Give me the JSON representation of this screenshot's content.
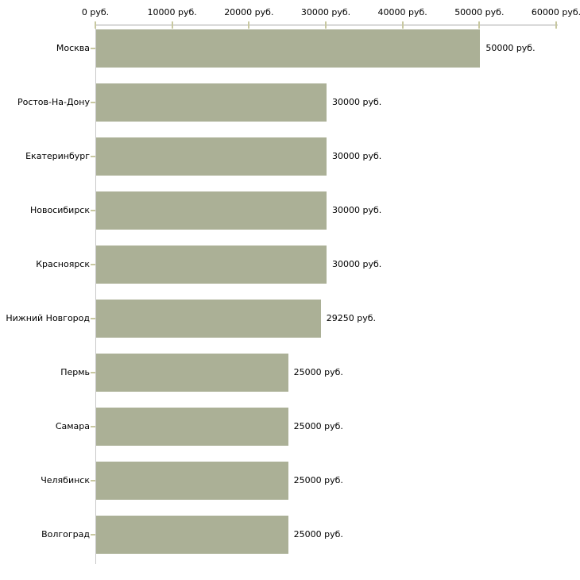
{
  "chart_data": {
    "type": "bar",
    "orientation": "horizontal",
    "title": "",
    "xlabel": "",
    "ylabel": "",
    "unit": "руб.",
    "grid": false,
    "legend": null,
    "categories": [
      "Москва",
      "Ростов-На-Дону",
      "Екатеринбург",
      "Новосибирск",
      "Красноярск",
      "Нижний Новгород",
      "Пермь",
      "Самара",
      "Челябинск",
      "Волгоград"
    ],
    "values": [
      50000,
      30000,
      30000,
      30000,
      30000,
      29250,
      25000,
      25000,
      25000,
      25000
    ],
    "value_labels": [
      "50000 руб.",
      "30000 руб.",
      "30000 руб.",
      "30000 руб.",
      "30000 руб.",
      "29250 руб.",
      "25000 руб.",
      "25000 руб.",
      "25000 руб.",
      "25000 руб."
    ],
    "x_tick_values": [
      0,
      10000,
      20000,
      30000,
      40000,
      50000,
      60000
    ],
    "x_tick_labels": [
      "0 руб.",
      "10000 руб.",
      "20000 руб.",
      "30000 руб.",
      "40000 руб.",
      "50000 руб.",
      "60000 руб."
    ],
    "xlim": [
      0,
      60000
    ],
    "colors": {
      "bar": "#abb096",
      "x_axis_line": "#a6a6a6",
      "y_axis_line": "#c9c9c9",
      "tick": "#c8c8a0",
      "text": "#000000",
      "background": "#ffffff"
    }
  }
}
